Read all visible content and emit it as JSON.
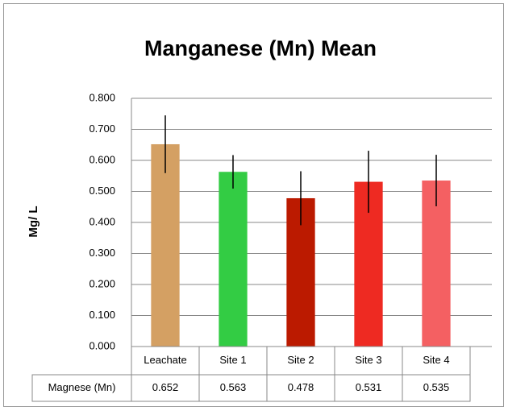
{
  "chart_data": {
    "type": "bar",
    "title": "Manganese (Mn) Mean",
    "y_label": "Mg/ L",
    "categories": [
      "Leachate",
      "Site 1",
      "Site 2",
      "Site 3",
      "Site 4"
    ],
    "series_name": "Magnese (Mn)",
    "values": [
      0.652,
      0.563,
      0.478,
      0.531,
      0.535
    ],
    "errors": [
      0.093,
      0.054,
      0.087,
      0.1,
      0.083
    ],
    "colors": [
      "#d4a063",
      "#33cc44",
      "#bb1a00",
      "#ee2a22",
      "#f46062"
    ],
    "ylim": [
      0,
      0.8
    ],
    "yticks": [
      {
        "value": 0,
        "label": "0.000"
      },
      {
        "value": 0.1,
        "label": "0.100"
      },
      {
        "value": 0.2,
        "label": "0.200"
      },
      {
        "value": 0.3,
        "label": "0.300"
      },
      {
        "value": 0.4,
        "label": "0.400"
      },
      {
        "value": 0.5,
        "label": "0.500"
      },
      {
        "value": 0.6,
        "label": "0.600"
      },
      {
        "value": 0.7,
        "label": "0.700"
      },
      {
        "value": 0.8,
        "label": "0.800"
      }
    ],
    "grid": true,
    "data_table": true
  }
}
